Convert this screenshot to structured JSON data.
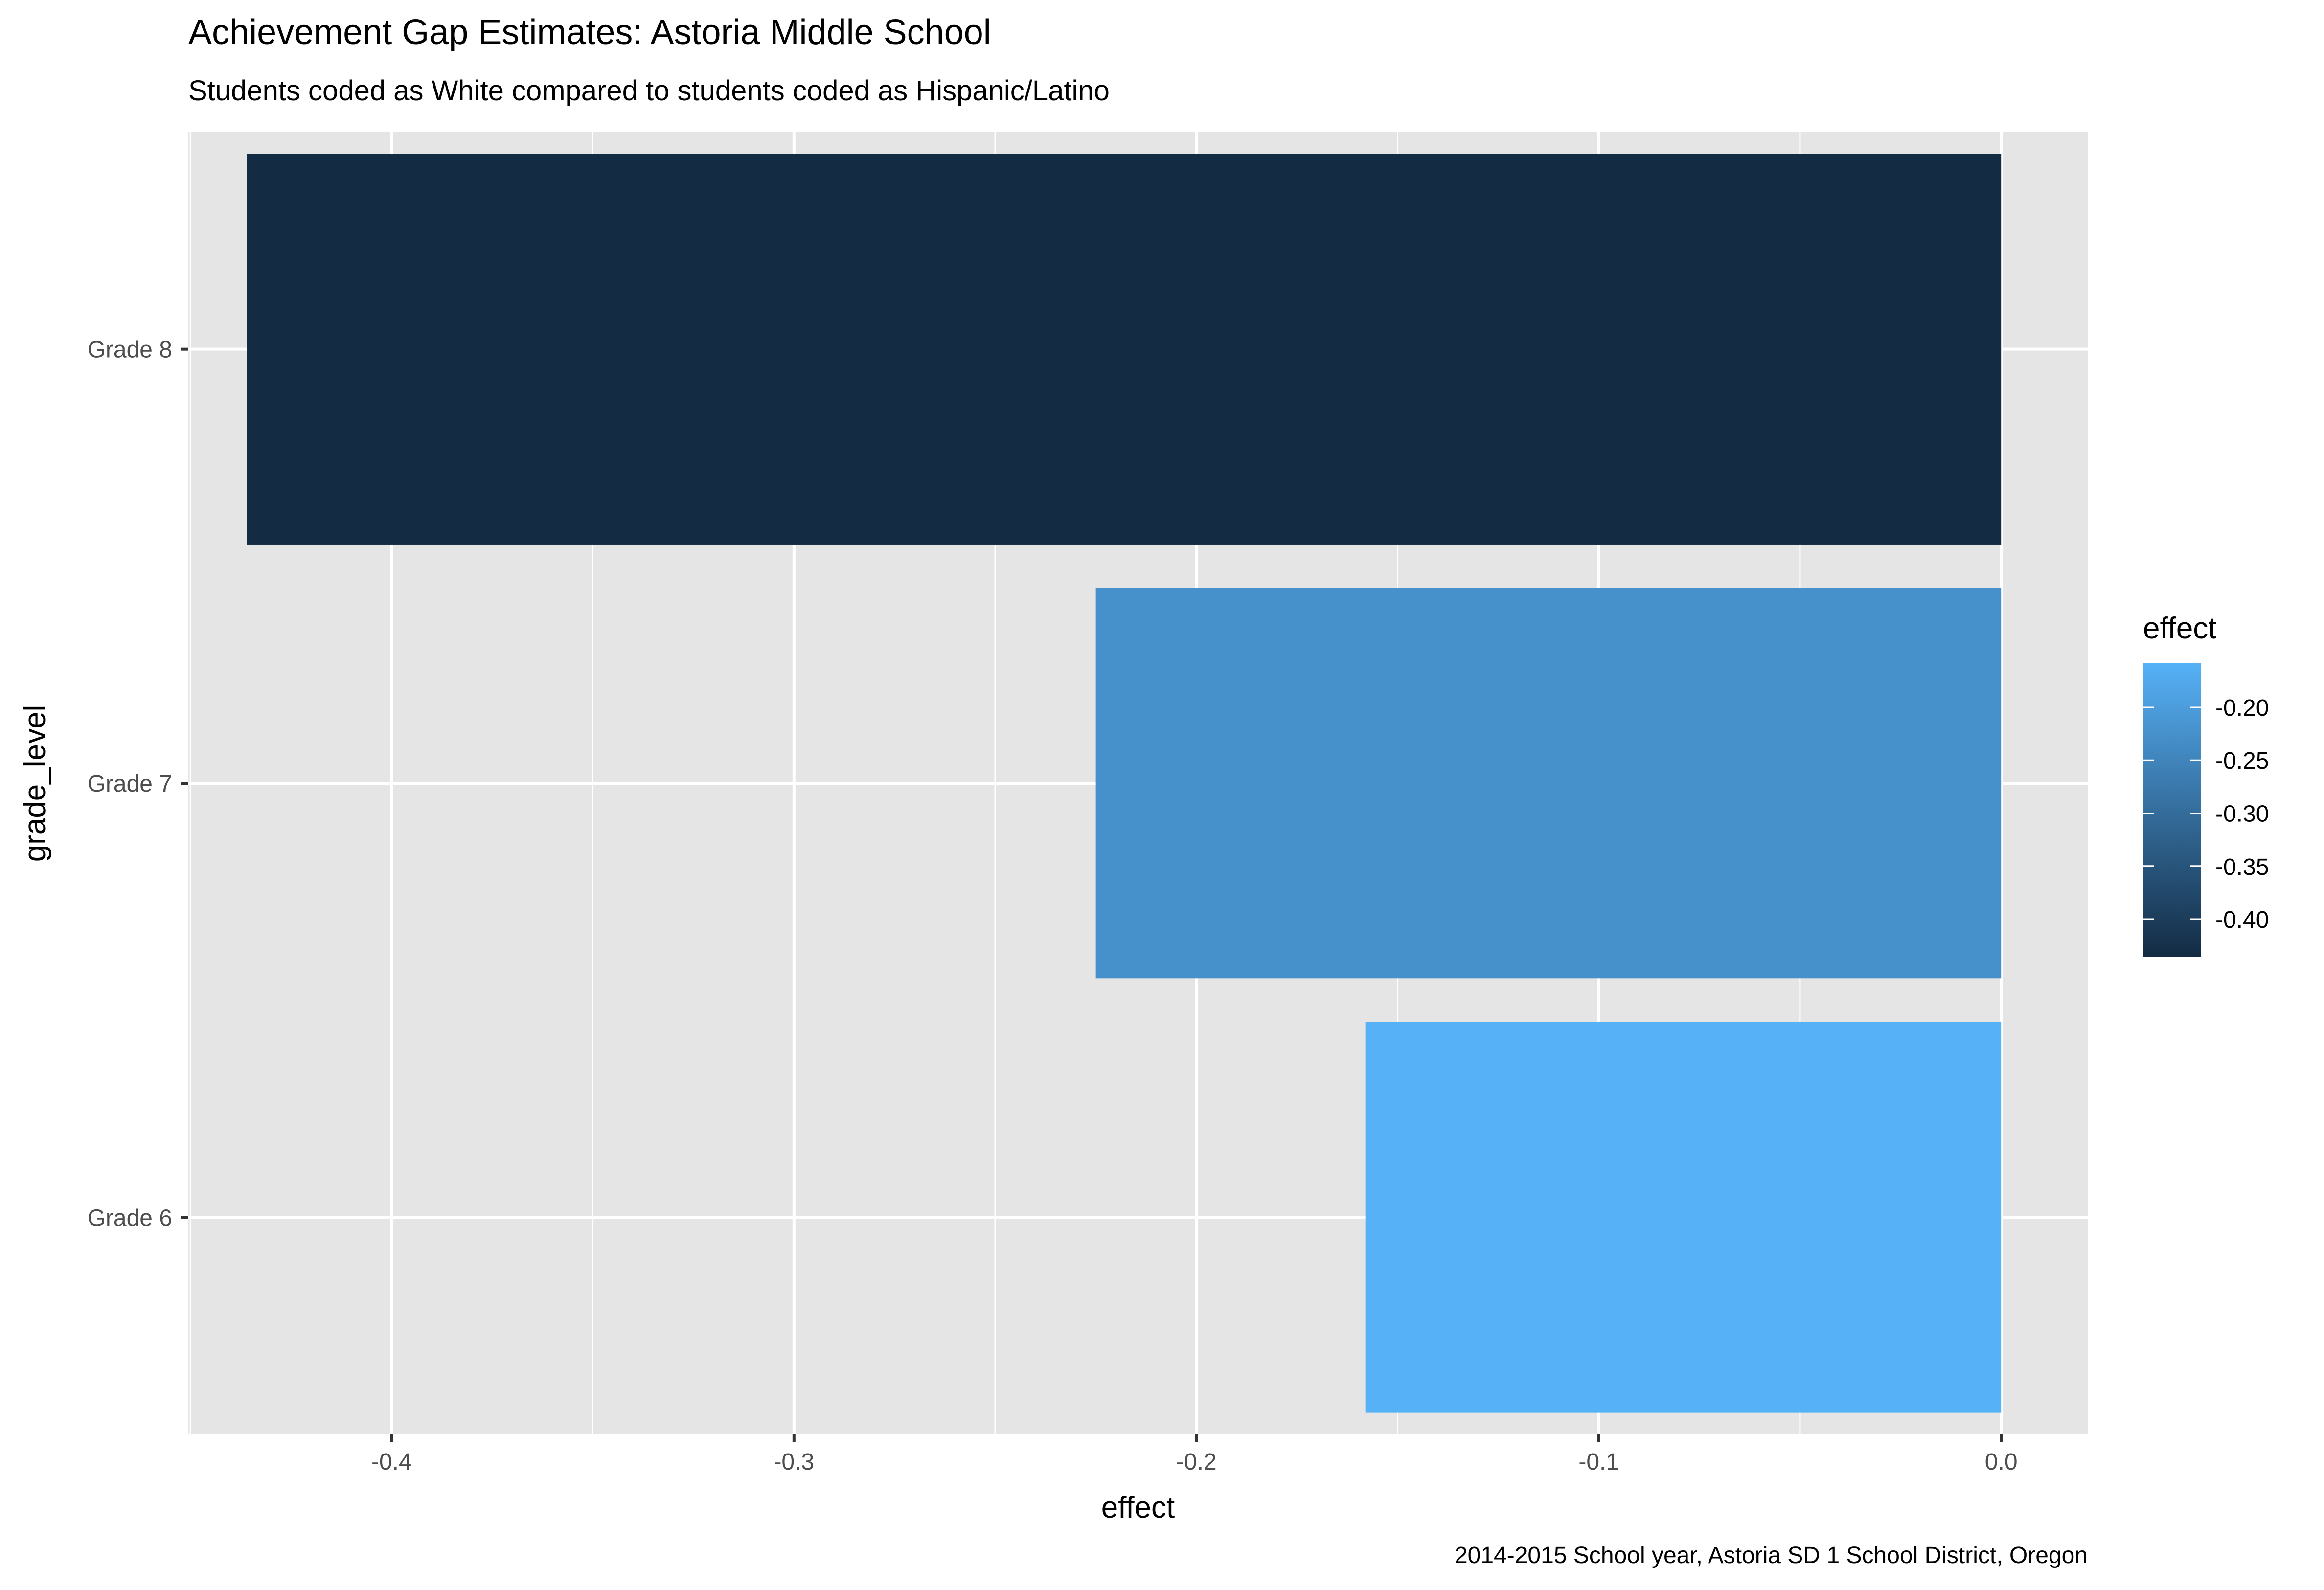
{
  "chart_data": {
    "type": "bar",
    "orientation": "horizontal",
    "title": "Achievement Gap Estimates: Astoria Middle School",
    "subtitle": "Students coded as White compared to students coded as Hispanic/Latino",
    "caption": "2014-2015 School year, Astoria SD 1 School District, Oregon",
    "xlabel": "effect",
    "ylabel": "grade_level",
    "categories": [
      "Grade 6",
      "Grade 7",
      "Grade 8"
    ],
    "values": [
      -0.158,
      -0.225,
      -0.436
    ],
    "xlim": [
      -0.4505,
      0.0215
    ],
    "x_ticks": [
      -0.4,
      -0.3,
      -0.2,
      -0.1,
      0.0
    ],
    "x_tick_labels": [
      "-0.4",
      "-0.3",
      "-0.2",
      "-0.1",
      "0.0"
    ],
    "grid": true,
    "legend": {
      "title": "effect",
      "placement": "right",
      "ticks": [
        -0.2,
        -0.25,
        -0.3,
        -0.35,
        -0.4
      ],
      "tick_labels": [
        "-0.20",
        "-0.25",
        "-0.30",
        "-0.35",
        "-0.40"
      ],
      "range": [
        -0.436,
        -0.158
      ]
    },
    "colors": {
      "low": "#132B43",
      "high": "#56B1F7",
      "panel_background": "#E5E5E5",
      "grid": "#FFFFFF"
    }
  }
}
